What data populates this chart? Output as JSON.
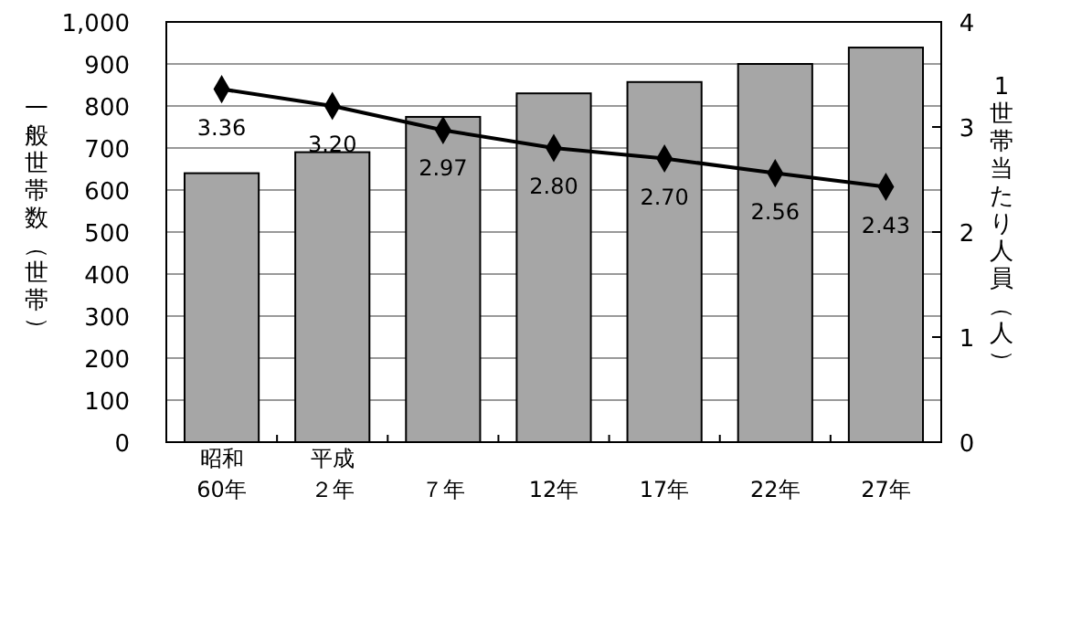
{
  "chart_data": {
    "type": "bar",
    "categories": [
      "昭和60年",
      "平成２年",
      "７年",
      "12年",
      "17年",
      "22年",
      "27年"
    ],
    "ylabel": "一般世帯数（世帯）",
    "y2label": "1世帯当たり人員（人）",
    "ylim": [
      0,
      1000
    ],
    "yticks": [
      0,
      100,
      200,
      300,
      400,
      500,
      600,
      700,
      800,
      900,
      {
        "value": 1000,
        "label": "1,000"
      }
    ],
    "y2lim": [
      0,
      4
    ],
    "y2ticks": [
      0,
      1,
      2,
      3,
      4
    ],
    "grid": "y",
    "series": [
      {
        "color": "#a6a6a6",
        "values": [
          640,
          690,
          774,
          830,
          857,
          900,
          939
        ]
      },
      {
        "type": "line",
        "axis": "y2",
        "color": "#000000",
        "marker": "diamond",
        "values": [
          3.36,
          3.2,
          2.97,
          2.8,
          2.7,
          2.56,
          2.43
        ],
        "value_labels": [
          "3.36",
          "3.20",
          "2.97",
          "2.80",
          "2.70",
          "2.56",
          "2.43"
        ]
      }
    ]
  }
}
